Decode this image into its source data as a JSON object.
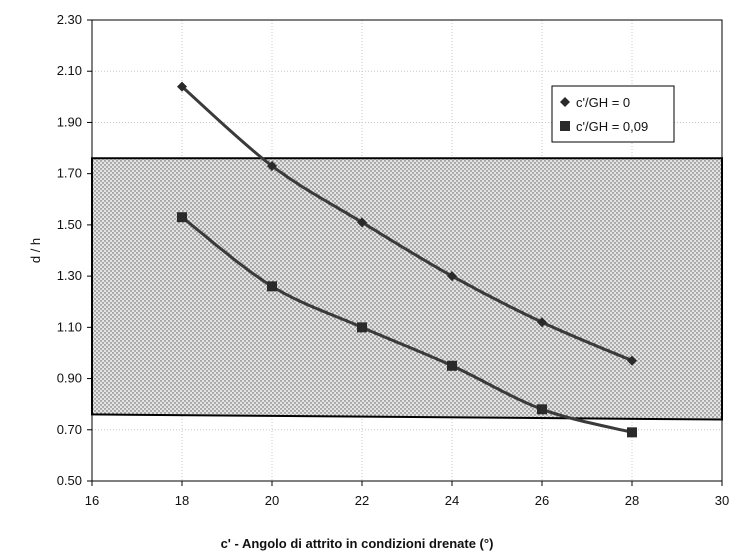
{
  "chart_data": {
    "type": "scatter",
    "xlabel": "c' - Angolo di attrito in condizioni drenate (°)",
    "ylabel": "d / h",
    "xlim": [
      16,
      30
    ],
    "ylim": [
      0.5,
      2.3
    ],
    "x_ticks": [
      "16",
      "18",
      "20",
      "22",
      "24",
      "26",
      "28",
      "30"
    ],
    "y_ticks": [
      "0.50",
      "0.70",
      "0.90",
      "1.10",
      "1.30",
      "1.50",
      "1.70",
      "1.90",
      "2.10",
      "2.30"
    ],
    "grid": true,
    "legend_position": "top-right",
    "series": [
      {
        "name": "c'/GH = 0",
        "marker": "diamond",
        "x": [
          18,
          20,
          22,
          24,
          26,
          28
        ],
        "y": [
          2.04,
          1.73,
          1.51,
          1.3,
          1.12,
          0.97
        ]
      },
      {
        "name": "c'/GH = 0,09",
        "marker": "square",
        "x": [
          18,
          20,
          22,
          24,
          26,
          28
        ],
        "y": [
          1.53,
          1.26,
          1.1,
          0.95,
          0.78,
          0.69
        ]
      }
    ],
    "shaded_band": {
      "corners": [
        [
          16,
          1.76
        ],
        [
          30,
          1.76
        ],
        [
          30,
          0.74
        ],
        [
          16,
          0.76
        ]
      ],
      "pattern": "dotted"
    },
    "colors": {
      "markers": "#2a2a2a",
      "lines": "#3a3a3a",
      "band_border": "#000000",
      "band_fill": "#dcdcdc"
    }
  }
}
